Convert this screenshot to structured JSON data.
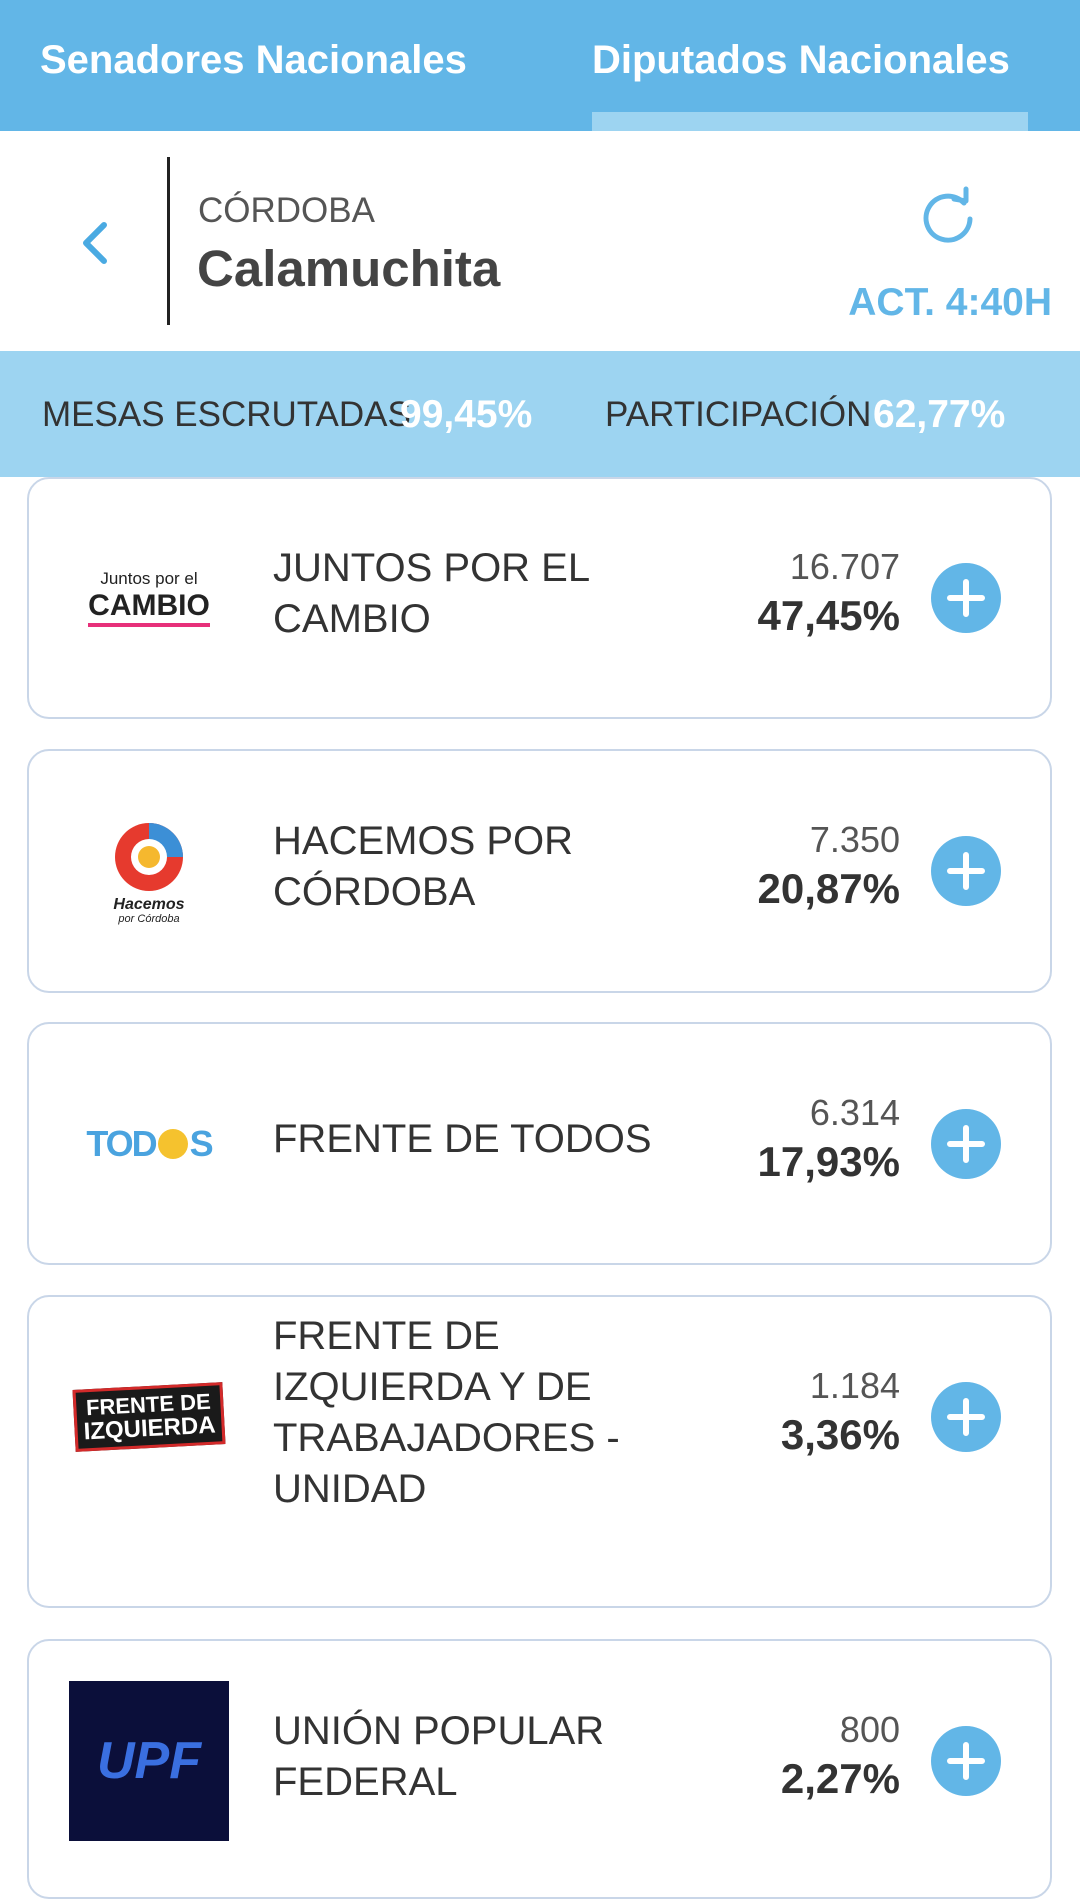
{
  "tabs": [
    "Senadores Nacionales",
    "Diputados Nacionales"
  ],
  "location": {
    "province": "CÓRDOBA",
    "department": "Calamuchita",
    "updated": "ACT. 4:40H"
  },
  "stats": {
    "mesas_label": "MESAS ESCRUTADAS",
    "mesas_value": "99,45%",
    "participation_label": "PARTICIPACIÓN",
    "participation_value": "62,77%"
  },
  "parties": [
    {
      "name": "JUNTOS POR EL CAMBIO",
      "votes": "16.707",
      "percent": "47,45%",
      "logo": [
        "Juntos por el",
        "CAMBIO"
      ]
    },
    {
      "name": "HACEMOS POR CÓRDOBA",
      "votes": "7.350",
      "percent": "20,87%",
      "logo": [
        "Hacemos",
        "por Córdoba"
      ]
    },
    {
      "name": "FRENTE DE TODOS",
      "votes": "6.314",
      "percent": "17,93%",
      "logo": [
        "TOD",
        "S"
      ]
    },
    {
      "name": "FRENTE DE IZQUIERDA Y DE TRABAJADORES - UNIDAD",
      "votes": "1.184",
      "percent": "3,36%",
      "logo": [
        "FRENTE DE",
        "IZQUIERDA"
      ]
    },
    {
      "name": "UNIÓN POPULAR FEDERAL",
      "votes": "800",
      "percent": "2,27%",
      "logo": [
        "UPF"
      ]
    }
  ]
}
